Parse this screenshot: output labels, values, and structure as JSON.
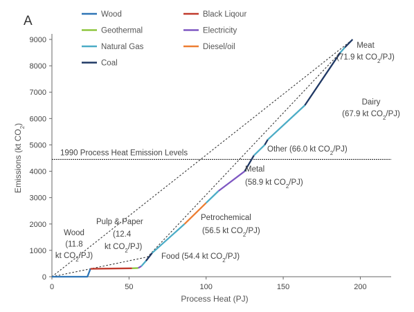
{
  "chart_data": {
    "type": "line",
    "panel_label": "A",
    "xlabel": "Process Heat (PJ)",
    "ylabel": "Emissions (kt CO2)",
    "xlim": [
      0,
      220
    ],
    "ylim": [
      0,
      9000
    ],
    "x_ticks": [
      0,
      50,
      100,
      150,
      200
    ],
    "y_ticks": [
      0,
      1000,
      2000,
      3000,
      4000,
      5000,
      6000,
      7000,
      8000,
      9000
    ],
    "grid": false,
    "legend_position": "top-left",
    "legend": [
      {
        "name": "Wood",
        "color": "#2e75b6"
      },
      {
        "name": "Black Liqour",
        "color": "#c0392b"
      },
      {
        "name": "Geothermal",
        "color": "#8dc63f"
      },
      {
        "name": "Electricity",
        "color": "#7e57c2"
      },
      {
        "name": "Natural Gas",
        "color": "#4bacc6"
      },
      {
        "name": "Diesel/oil",
        "color": "#ed7d31"
      },
      {
        "name": "Coal",
        "color": "#1f3864"
      }
    ],
    "cumulative_curve": [
      {
        "fuel": "Wood",
        "points": [
          [
            0,
            0
          ],
          [
            23,
            0
          ],
          [
            25,
            300
          ]
        ]
      },
      {
        "fuel": "Black Liqour",
        "points": [
          [
            25,
            300
          ],
          [
            52,
            320
          ]
        ]
      },
      {
        "fuel": "Geothermal",
        "points": [
          [
            52,
            320
          ],
          [
            56,
            330
          ]
        ]
      },
      {
        "fuel": "Electricity",
        "points": [
          [
            56,
            330
          ],
          [
            58,
            400
          ]
        ]
      },
      {
        "fuel": "Natural Gas",
        "points": [
          [
            58,
            400
          ],
          [
            61,
            600
          ]
        ]
      },
      {
        "fuel": "Coal",
        "points": [
          [
            61,
            600
          ],
          [
            65,
            900
          ]
        ]
      },
      {
        "fuel": "Natural Gas",
        "points": [
          [
            65,
            900
          ],
          [
            86,
            2000
          ]
        ]
      },
      {
        "fuel": "Diesel/oil",
        "points": [
          [
            86,
            2000
          ],
          [
            100,
            2800
          ]
        ]
      },
      {
        "fuel": "Natural Gas",
        "points": [
          [
            100,
            2800
          ],
          [
            108,
            3250
          ]
        ]
      },
      {
        "fuel": "Electricity",
        "points": [
          [
            108,
            3250
          ],
          [
            125,
            4000
          ]
        ]
      },
      {
        "fuel": "Coal",
        "points": [
          [
            125,
            4000
          ],
          [
            131,
            4600
          ]
        ]
      },
      {
        "fuel": "Natural Gas",
        "points": [
          [
            131,
            4600
          ],
          [
            138,
            5000
          ]
        ]
      },
      {
        "fuel": "Coal",
        "points": [
          [
            138,
            5000
          ],
          [
            140,
            5200
          ]
        ]
      },
      {
        "fuel": "Natural Gas",
        "points": [
          [
            140,
            5200
          ],
          [
            164,
            6500
          ]
        ]
      },
      {
        "fuel": "Coal",
        "points": [
          [
            164,
            6500
          ],
          [
            187,
            8500
          ]
        ]
      },
      {
        "fuel": "Natural Gas",
        "points": [
          [
            187,
            8500
          ],
          [
            190,
            8700
          ]
        ]
      },
      {
        "fuel": "Coal",
        "points": [
          [
            190,
            8700
          ],
          [
            195,
            9000
          ]
        ]
      }
    ],
    "reference_lines": [
      {
        "type": "horizontal",
        "y": 4450,
        "label": "1990 Process Heat Emission Levels"
      },
      {
        "type": "dashed",
        "points": [
          [
            0,
            0
          ],
          [
            195,
            9000
          ]
        ]
      },
      {
        "type": "dashed",
        "points": [
          [
            0,
            0
          ],
          [
            25,
            300
          ],
          [
            62,
            750
          ],
          [
            195,
            9000
          ]
        ]
      }
    ],
    "annotations": [
      {
        "lines": [
          "Meat",
          "(71.9 kt CO2/PJ)"
        ]
      },
      {
        "lines": [
          "Dairy",
          "(67.9 kt CO2/PJ)"
        ]
      },
      {
        "lines": [
          "Other (66.0 kt CO2/PJ)"
        ]
      },
      {
        "lines": [
          "Metal",
          "(58.9 kt CO2/PJ)"
        ]
      },
      {
        "lines": [
          "Petrochemical",
          "(56.5 kt CO2/PJ)"
        ]
      },
      {
        "lines": [
          "Pulp & Paper",
          "(12.4",
          "kt CO2/PJ)"
        ]
      },
      {
        "lines": [
          "Wood",
          "(11.8",
          "kt CO2/PJ)"
        ]
      },
      {
        "lines": [
          "Food (54.4 kt CO2/PJ)"
        ]
      }
    ]
  }
}
